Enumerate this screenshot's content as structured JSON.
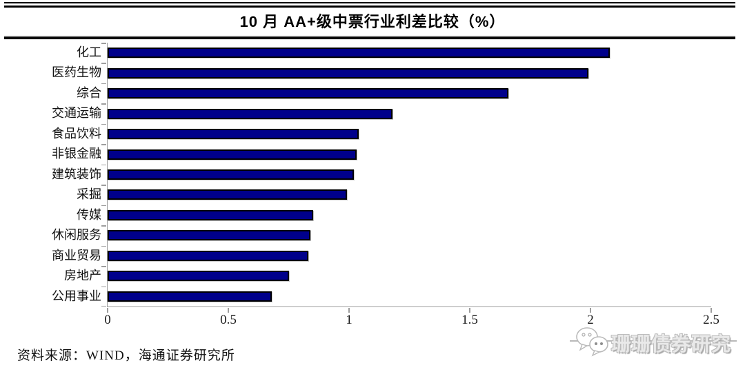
{
  "page": {
    "source_note": "资料来源：WIND，海通证券研究所",
    "watermark": {
      "icon": "wechat-icon",
      "text": "珊珊债券研究"
    }
  },
  "chart_data": {
    "type": "bar",
    "orientation": "horizontal",
    "title": "10 月 AA+级中票行业利差比较（%）",
    "categories": [
      "化工",
      "医药生物",
      "综合",
      "交通运输",
      "食品饮料",
      "非银金融",
      "建筑装饰",
      "采掘",
      "传媒",
      "休闲服务",
      "商业贸易",
      "房地产",
      "公用事业"
    ],
    "values": [
      2.08,
      1.99,
      1.66,
      1.18,
      1.04,
      1.03,
      1.02,
      0.99,
      0.85,
      0.84,
      0.83,
      0.75,
      0.68
    ],
    "xlabel": "",
    "ylabel": "",
    "xlim": [
      0,
      2.5
    ],
    "x_ticks": [
      0,
      0.5,
      1,
      1.5,
      2,
      2.5
    ],
    "x_tick_labels": [
      "0",
      "0.5",
      "1",
      "1.5",
      "2",
      "2.5"
    ],
    "grid": false,
    "legend": "none",
    "bar_color": "#00008B",
    "bar_border_color": "#000000",
    "axis_color": "#9d9d9d"
  }
}
